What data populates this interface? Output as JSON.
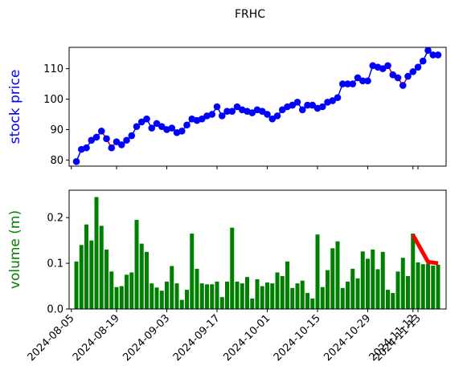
{
  "chart_data": [
    {
      "type": "line",
      "title": "FRHC",
      "ylabel": "stock price",
      "ylim": [
        78,
        117
      ],
      "yticks": [
        80,
        90,
        100,
        110
      ],
      "x_start": "2024-08-06",
      "x_end": "2024-11-14",
      "series": [
        {
          "values": [
            79.5,
            83.5,
            84,
            86.5,
            87.5,
            89.5,
            87,
            84,
            86,
            85,
            86.5,
            88,
            91,
            92.5,
            93.5,
            90.5,
            92,
            91,
            90,
            90.5,
            89,
            89.5,
            91.5,
            93.5,
            93,
            93.5,
            94.5,
            95,
            97.5,
            94.5,
            96,
            96,
            97.5,
            96.5,
            96,
            95.5,
            96.5,
            96,
            95,
            93.5,
            94.5,
            96.5,
            97.5,
            98,
            99,
            96.5,
            98,
            98,
            97,
            97.5,
            99,
            99.5,
            100.5,
            105,
            105,
            105,
            107,
            106,
            106,
            111,
            110.5,
            110,
            111,
            108,
            107,
            104.5,
            107.5,
            109,
            110.5,
            112.5,
            116,
            114.5,
            114.5
          ]
        }
      ],
      "down_segments": [
        [
          5,
          8
        ],
        [
          15,
          21
        ],
        [
          32,
          39
        ],
        [
          48,
          49
        ],
        [
          60,
          66
        ],
        [
          71,
          72
        ]
      ]
    },
    {
      "type": "bar",
      "ylabel": "volume (m)",
      "ylim": [
        0,
        0.26
      ],
      "yticks": [
        0.0,
        0.1,
        0.2
      ],
      "xtick_labels": [
        "2024-08-05",
        "2024-08-19",
        "2024-09-03",
        "2024-09-17",
        "2024-10-01",
        "2024-10-15",
        "2024-10-29",
        "2024-11-12",
        "2024-11-13"
      ],
      "xtick_offsets": [
        -1,
        8,
        18,
        28,
        38,
        48,
        58,
        67,
        68
      ],
      "values": [
        0.104,
        0.14,
        0.185,
        0.15,
        0.245,
        0.182,
        0.13,
        0.082,
        0.048,
        0.05,
        0.075,
        0.08,
        0.195,
        0.143,
        0.125,
        0.056,
        0.047,
        0.04,
        0.06,
        0.094,
        0.056,
        0.02,
        0.042,
        0.165,
        0.088,
        0.056,
        0.054,
        0.054,
        0.06,
        0.026,
        0.06,
        0.178,
        0.06,
        0.056,
        0.07,
        0.023,
        0.065,
        0.05,
        0.058,
        0.056,
        0.08,
        0.072,
        0.104,
        0.046,
        0.056,
        0.062,
        0.035,
        0.023,
        0.163,
        0.048,
        0.085,
        0.133,
        0.148,
        0.046,
        0.06,
        0.088,
        0.067,
        0.126,
        0.11,
        0.13,
        0.087,
        0.125,
        0.042,
        0.035,
        0.082,
        0.112,
        0.072,
        0.165,
        0.102,
        0.098,
        0.099,
        0.095,
        0.097
      ],
      "trend_line": {
        "from_index": 67,
        "to_index": 70,
        "from_value": 0.162,
        "to_value": 0.103,
        "tail_to_index": 72,
        "tail_value": 0.1
      }
    }
  ],
  "colors": {
    "price_line": "#0000ff",
    "price_marker": "#0000ff",
    "down_segment": "#ff0000",
    "volume_bar": "#008000",
    "trend_line": "#ff0000",
    "price_label": "#0000ff",
    "volume_label": "#008000"
  }
}
